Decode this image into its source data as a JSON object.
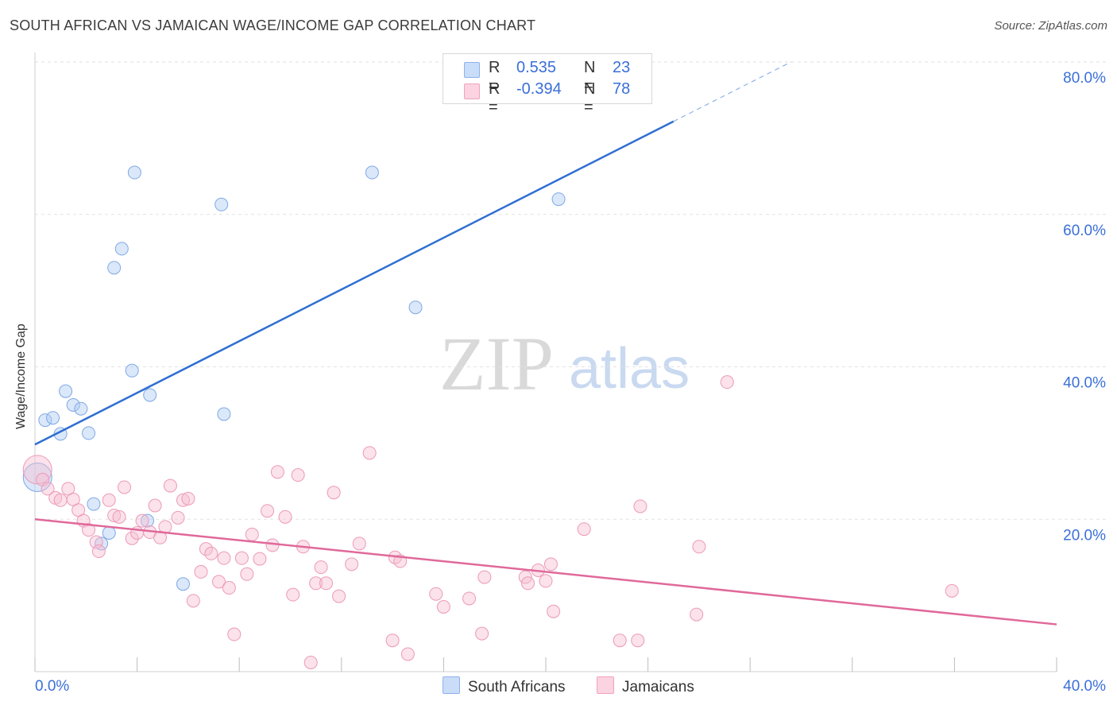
{
  "title": "SOUTH AFRICAN VS JAMAICAN WAGE/INCOME GAP CORRELATION CHART",
  "source": "Source: ZipAtlas.com",
  "watermark": {
    "part1": "ZIP",
    "part2": "atlas"
  },
  "stats": [
    {
      "r_label": "R =",
      "r_value": "0.535",
      "n_label": "N =",
      "n_value": "23",
      "color": "#aecbf5"
    },
    {
      "r_label": "R =",
      "r_value": "-0.394",
      "n_label": "N =",
      "n_value": "78",
      "color": "#f7bfd2"
    }
  ],
  "legend": [
    {
      "label": "South Africans",
      "color": "#aecbf5"
    },
    {
      "label": "Jamaicans",
      "color": "#f7bfd2"
    }
  ],
  "chart_data": {
    "type": "scatter",
    "title": "SOUTH AFRICAN VS JAMAICAN WAGE/INCOME GAP CORRELATION CHART",
    "xlabel": "",
    "ylabel": "Wage/Income Gap",
    "xlim": [
      0,
      40
    ],
    "ylim": [
      0,
      80
    ],
    "x_tick_labels": [
      "0.0%",
      "40.0%"
    ],
    "y_ticks": [
      20,
      40,
      60,
      80
    ],
    "y_tick_labels": [
      "20.0%",
      "40.0%",
      "60.0%",
      "80.0%"
    ],
    "grid": true,
    "legend_position": "bottom",
    "series": [
      {
        "name": "South Africans",
        "color": "#aecbf5",
        "line_color": "#2f6fd1",
        "trend": {
          "x0": 0,
          "y0": 29.8,
          "x1": 25,
          "y1": 72.2,
          "dash_x1": 29.6,
          "dash_y1": 80
        },
        "points": [
          [
            0.1,
            25.5
          ],
          [
            0.4,
            33.0
          ],
          [
            0.7,
            33.3
          ],
          [
            1.0,
            31.2
          ],
          [
            1.2,
            36.8
          ],
          [
            1.5,
            35.0
          ],
          [
            1.8,
            34.5
          ],
          [
            2.1,
            31.3
          ],
          [
            2.3,
            22.0
          ],
          [
            2.6,
            16.8
          ],
          [
            2.9,
            18.2
          ],
          [
            3.1,
            53.0
          ],
          [
            3.4,
            55.5
          ],
          [
            3.8,
            39.5
          ],
          [
            3.9,
            65.5
          ],
          [
            4.4,
            19.8
          ],
          [
            4.5,
            36.3
          ],
          [
            5.8,
            11.5
          ],
          [
            7.3,
            61.3
          ],
          [
            7.4,
            33.8
          ],
          [
            13.2,
            65.5
          ],
          [
            14.9,
            47.8
          ],
          [
            20.5,
            62.0
          ]
        ]
      },
      {
        "name": "Jamaicans",
        "color": "#f7bfd2",
        "line_color": "#e0699a",
        "trend": {
          "x0": 0,
          "y0": 20.0,
          "x1": 40,
          "y1": 6.2
        },
        "points": [
          [
            0.1,
            26.5
          ],
          [
            0.3,
            25.2
          ],
          [
            0.5,
            24.0
          ],
          [
            0.8,
            22.8
          ],
          [
            1.0,
            22.5
          ],
          [
            1.3,
            24.0
          ],
          [
            1.5,
            22.6
          ],
          [
            1.7,
            21.2
          ],
          [
            1.9,
            19.8
          ],
          [
            2.1,
            18.6
          ],
          [
            2.4,
            17.0
          ],
          [
            2.5,
            15.8
          ],
          [
            2.9,
            22.5
          ],
          [
            3.1,
            20.5
          ],
          [
            3.3,
            20.3
          ],
          [
            3.5,
            24.2
          ],
          [
            3.8,
            17.5
          ],
          [
            4.0,
            18.2
          ],
          [
            4.2,
            19.8
          ],
          [
            4.5,
            18.3
          ],
          [
            4.7,
            21.8
          ],
          [
            4.9,
            17.6
          ],
          [
            5.1,
            19.0
          ],
          [
            5.3,
            24.4
          ],
          [
            5.6,
            20.2
          ],
          [
            5.8,
            22.5
          ],
          [
            6.0,
            22.7
          ],
          [
            6.2,
            9.3
          ],
          [
            6.5,
            13.1
          ],
          [
            6.7,
            16.1
          ],
          [
            6.9,
            15.5
          ],
          [
            7.2,
            11.8
          ],
          [
            7.4,
            14.9
          ],
          [
            7.6,
            11.0
          ],
          [
            7.8,
            4.9
          ],
          [
            8.1,
            14.9
          ],
          [
            8.3,
            12.8
          ],
          [
            8.5,
            18.0
          ],
          [
            8.8,
            14.8
          ],
          [
            9.1,
            21.1
          ],
          [
            9.3,
            16.6
          ],
          [
            9.5,
            26.2
          ],
          [
            9.8,
            20.3
          ],
          [
            10.1,
            10.1
          ],
          [
            10.3,
            25.8
          ],
          [
            10.5,
            16.4
          ],
          [
            10.8,
            1.2
          ],
          [
            11.0,
            11.6
          ],
          [
            11.2,
            13.7
          ],
          [
            11.4,
            11.6
          ],
          [
            11.7,
            23.5
          ],
          [
            11.9,
            9.9
          ],
          [
            12.4,
            14.1
          ],
          [
            12.7,
            16.8
          ],
          [
            13.1,
            28.7
          ],
          [
            14.0,
            4.1
          ],
          [
            14.1,
            15.0
          ],
          [
            14.3,
            14.5
          ],
          [
            14.6,
            2.3
          ],
          [
            15.7,
            10.2
          ],
          [
            16.0,
            8.5
          ],
          [
            17.0,
            9.6
          ],
          [
            17.5,
            5.0
          ],
          [
            17.6,
            12.4
          ],
          [
            19.2,
            12.4
          ],
          [
            19.3,
            11.6
          ],
          [
            19.7,
            13.3
          ],
          [
            20.0,
            11.9
          ],
          [
            20.2,
            14.1
          ],
          [
            20.3,
            7.9
          ],
          [
            21.5,
            18.7
          ],
          [
            22.9,
            4.1
          ],
          [
            23.6,
            4.1
          ],
          [
            23.7,
            21.7
          ],
          [
            25.9,
            7.5
          ],
          [
            26.0,
            16.4
          ],
          [
            27.1,
            38.0
          ],
          [
            35.9,
            10.6
          ]
        ]
      }
    ]
  }
}
